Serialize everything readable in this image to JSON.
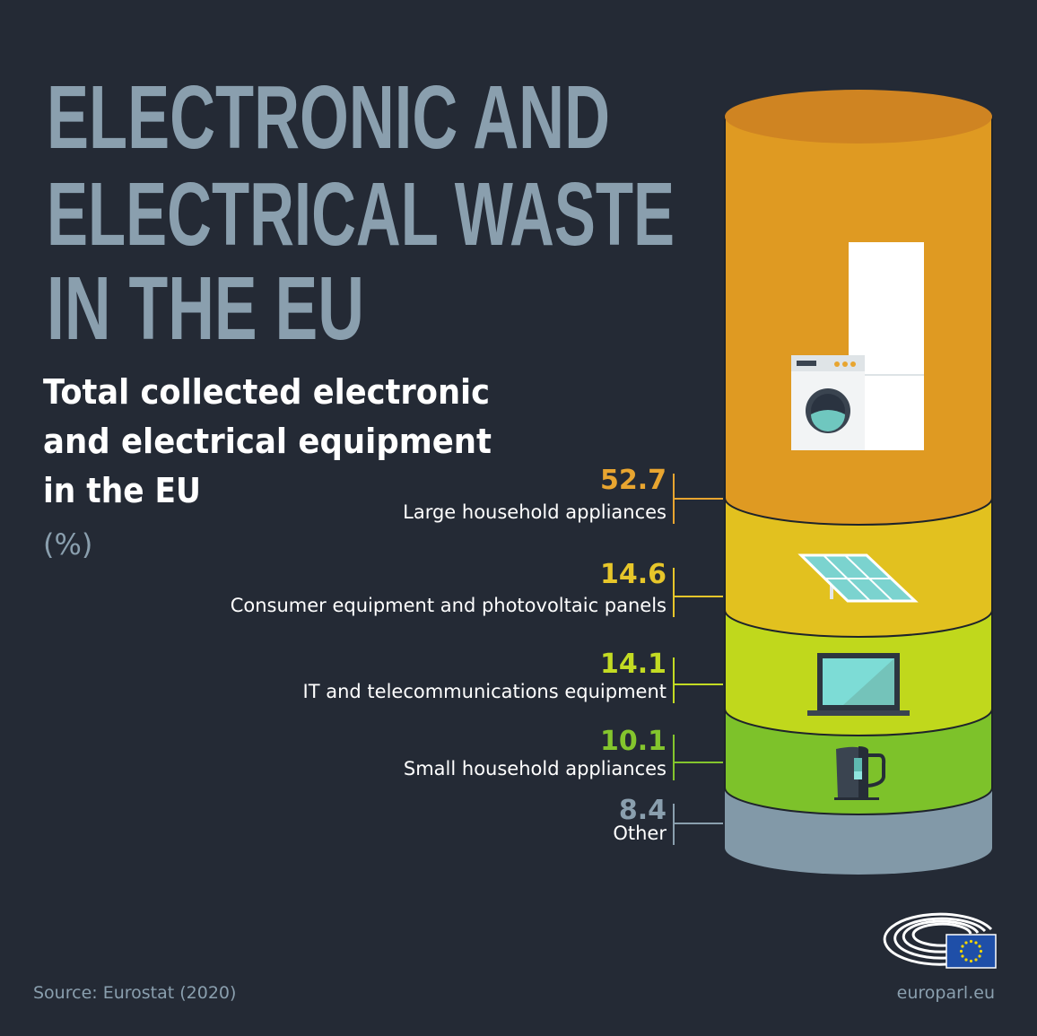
{
  "title_lines": [
    "ELECTRONIC AND",
    "ELECTRICAL WASTE",
    "IN THE EU"
  ],
  "subtitle_lines": [
    "Total collected electronic",
    "and electrical equipment",
    "in the EU"
  ],
  "unit": "(%)",
  "source": "Source: Eurostat (2020)",
  "website": "europarl.eu",
  "chart_data": {
    "type": "bar",
    "subtype": "stacked-cylinder",
    "title": "Total collected electronic and electrical equipment in the EU",
    "ylabel": "(%)",
    "categories": [
      "Large household appliances",
      "Consumer equipment and photovoltaic panels",
      "IT and telecommunications equipment",
      "Small household appliances",
      "Other"
    ],
    "values": [
      52.7,
      14.6,
      14.1,
      10.1,
      8.4
    ],
    "value_labels": [
      "52.7",
      "14.6",
      "14.1",
      "10.1",
      "8.4"
    ],
    "colors": [
      "#df9a22",
      "#e2c11f",
      "#c0d81c",
      "#7dc22a",
      "#8299a8"
    ],
    "label_colors": [
      "#e8a530",
      "#e7c62a",
      "#c3db23",
      "#84c52d",
      "#8a9fae"
    ],
    "icons": [
      "washing-machine-fridge-icon",
      "solar-panel-icon",
      "laptop-icon",
      "kettle-icon",
      ""
    ]
  }
}
